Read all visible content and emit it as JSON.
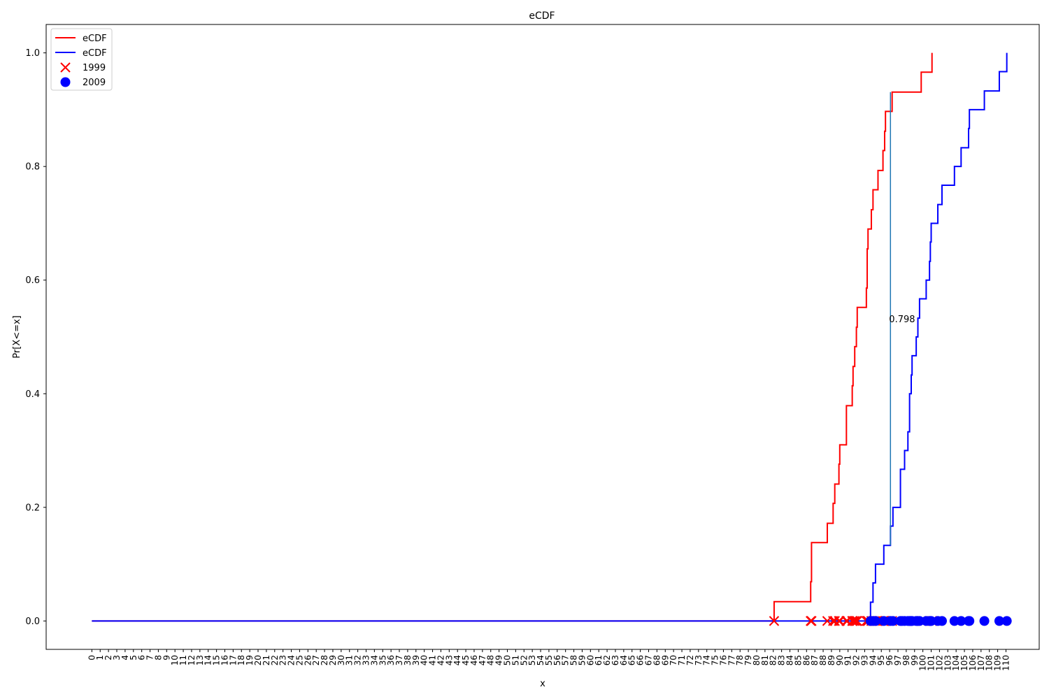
{
  "chart_data": {
    "type": "line",
    "title": "eCDF",
    "xlabel": "x",
    "ylabel": "Pr[X<=x]",
    "xlim": [
      -5.5,
      114
    ],
    "ylim": [
      -0.05,
      1.05
    ],
    "x_ticks": [
      "0",
      "1",
      "2",
      "3",
      "4",
      "5",
      "6",
      "7",
      "8",
      "9",
      "10",
      "11",
      "12",
      "13",
      "14",
      "15",
      "16",
      "17",
      "18",
      "19",
      "20",
      "21",
      "22",
      "23",
      "24",
      "25",
      "26",
      "27",
      "28",
      "29",
      "30",
      "31",
      "32",
      "33",
      "34",
      "35",
      "36",
      "37",
      "38",
      "39",
      "40",
      "41",
      "42",
      "43",
      "44",
      "45",
      "46",
      "47",
      "48",
      "49",
      "50",
      "51",
      "52",
      "53",
      "54",
      "55",
      "56",
      "57",
      "58",
      "59",
      "60",
      "61",
      "62",
      "63",
      "64",
      "65",
      "66",
      "67",
      "68",
      "69",
      "70",
      "71",
      "72",
      "73",
      "74",
      "75",
      "76",
      "77",
      "78",
      "79",
      "80",
      "81",
      "82",
      "83",
      "84",
      "85",
      "86",
      "87",
      "88",
      "89",
      "90",
      "91",
      "92",
      "93",
      "94",
      "95",
      "96",
      "97",
      "98",
      "99",
      "100",
      "101",
      "102",
      "103",
      "104",
      "105",
      "106",
      "107",
      "108",
      "109",
      "110"
    ],
    "y_ticks": [
      "0.0",
      "0.2",
      "0.4",
      "0.6",
      "0.8",
      "1.0"
    ],
    "legend_position": "top-left",
    "grid": false,
    "series": [
      {
        "name": "eCDF",
        "kind": "step",
        "color": "#ff0000",
        "points": [
          [
            0,
            0
          ],
          [
            82.1,
            0
          ],
          [
            82.1,
            0.034
          ],
          [
            86.5,
            0.034
          ],
          [
            86.5,
            0.069
          ],
          [
            86.6,
            0.069
          ],
          [
            86.6,
            0.138
          ],
          [
            88.5,
            0.138
          ],
          [
            88.5,
            0.172
          ],
          [
            89.2,
            0.172
          ],
          [
            89.2,
            0.207
          ],
          [
            89.4,
            0.207
          ],
          [
            89.4,
            0.241
          ],
          [
            89.9,
            0.241
          ],
          [
            89.9,
            0.276
          ],
          [
            90.0,
            0.276
          ],
          [
            90.0,
            0.31
          ],
          [
            90.8,
            0.31
          ],
          [
            90.8,
            0.379
          ],
          [
            91.5,
            0.379
          ],
          [
            91.5,
            0.414
          ],
          [
            91.6,
            0.414
          ],
          [
            91.6,
            0.448
          ],
          [
            91.8,
            0.448
          ],
          [
            91.8,
            0.483
          ],
          [
            92.0,
            0.483
          ],
          [
            92.0,
            0.517
          ],
          [
            92.1,
            0.517
          ],
          [
            92.1,
            0.552
          ],
          [
            93.2,
            0.552
          ],
          [
            93.2,
            0.586
          ],
          [
            93.3,
            0.586
          ],
          [
            93.3,
            0.655
          ],
          [
            93.4,
            0.655
          ],
          [
            93.4,
            0.69
          ],
          [
            93.8,
            0.69
          ],
          [
            93.8,
            0.724
          ],
          [
            94.0,
            0.724
          ],
          [
            94.0,
            0.759
          ],
          [
            94.6,
            0.759
          ],
          [
            94.6,
            0.793
          ],
          [
            95.2,
            0.793
          ],
          [
            95.2,
            0.828
          ],
          [
            95.4,
            0.828
          ],
          [
            95.4,
            0.862
          ],
          [
            95.5,
            0.862
          ],
          [
            95.5,
            0.897
          ],
          [
            96.3,
            0.897
          ],
          [
            96.3,
            0.931
          ],
          [
            99.8,
            0.931
          ],
          [
            99.8,
            0.966
          ],
          [
            101.1,
            0.966
          ],
          [
            101.1,
            1.0
          ]
        ]
      },
      {
        "name": "eCDF",
        "kind": "step",
        "color": "#0000ff",
        "points": [
          [
            0,
            0
          ],
          [
            93.7,
            0
          ],
          [
            93.7,
            0.033
          ],
          [
            94.0,
            0.033
          ],
          [
            94.0,
            0.067
          ],
          [
            94.3,
            0.067
          ],
          [
            94.3,
            0.1
          ],
          [
            95.3,
            0.1
          ],
          [
            95.3,
            0.133
          ],
          [
            96.1,
            0.133
          ],
          [
            96.1,
            0.167
          ],
          [
            96.4,
            0.167
          ],
          [
            96.4,
            0.2
          ],
          [
            97.3,
            0.2
          ],
          [
            97.3,
            0.267
          ],
          [
            97.8,
            0.267
          ],
          [
            97.8,
            0.3
          ],
          [
            98.2,
            0.3
          ],
          [
            98.2,
            0.333
          ],
          [
            98.4,
            0.333
          ],
          [
            98.4,
            0.4
          ],
          [
            98.6,
            0.4
          ],
          [
            98.6,
            0.433
          ],
          [
            98.7,
            0.433
          ],
          [
            98.7,
            0.467
          ],
          [
            99.2,
            0.467
          ],
          [
            99.2,
            0.5
          ],
          [
            99.4,
            0.5
          ],
          [
            99.4,
            0.533
          ],
          [
            99.6,
            0.533
          ],
          [
            99.6,
            0.567
          ],
          [
            100.4,
            0.567
          ],
          [
            100.4,
            0.6
          ],
          [
            100.8,
            0.6
          ],
          [
            100.8,
            0.633
          ],
          [
            100.9,
            0.633
          ],
          [
            100.9,
            0.667
          ],
          [
            101.0,
            0.667
          ],
          [
            101.0,
            0.7
          ],
          [
            101.8,
            0.7
          ],
          [
            101.8,
            0.733
          ],
          [
            102.3,
            0.733
          ],
          [
            102.3,
            0.767
          ],
          [
            103.8,
            0.767
          ],
          [
            103.8,
            0.8
          ],
          [
            104.6,
            0.8
          ],
          [
            104.6,
            0.833
          ],
          [
            105.5,
            0.833
          ],
          [
            105.5,
            0.867
          ],
          [
            105.6,
            0.867
          ],
          [
            105.6,
            0.9
          ],
          [
            107.4,
            0.9
          ],
          [
            107.4,
            0.933
          ],
          [
            109.2,
            0.933
          ],
          [
            109.2,
            0.967
          ],
          [
            110.1,
            0.967
          ],
          [
            110.1,
            1.0
          ]
        ]
      }
    ],
    "scatter_series": [
      {
        "name": "1999",
        "marker": "x",
        "color": "#ff0000",
        "x": [
          82.1,
          86.5,
          86.6,
          88.5,
          89.2,
          89.4,
          89.9,
          90.0,
          90.8,
          90.9,
          91.5,
          91.6,
          91.8,
          92.0,
          92.1,
          93.2,
          93.3,
          93.4,
          93.8,
          94.0,
          94.6,
          95.2,
          95.4,
          95.5,
          96.3,
          99.8,
          101.1
        ],
        "y": [
          0,
          0,
          0,
          0,
          0,
          0,
          0,
          0,
          0,
          0,
          0,
          0,
          0,
          0,
          0,
          0,
          0,
          0,
          0,
          0,
          0,
          0,
          0,
          0,
          0,
          0,
          0
        ]
      },
      {
        "name": "2009",
        "marker": "circle",
        "color": "#0000ff",
        "x": [
          93.7,
          94.0,
          94.3,
          95.3,
          96.1,
          96.4,
          97.3,
          97.5,
          97.8,
          98.2,
          98.4,
          98.5,
          98.6,
          98.7,
          99.2,
          99.4,
          99.6,
          100.4,
          100.8,
          100.9,
          101.0,
          101.8,
          102.3,
          103.8,
          104.6,
          105.5,
          105.6,
          107.4,
          109.2,
          110.1
        ],
        "y": [
          0,
          0,
          0,
          0,
          0,
          0,
          0,
          0,
          0,
          0,
          0,
          0,
          0,
          0,
          0,
          0,
          0,
          0,
          0,
          0,
          0,
          0,
          0,
          0,
          0,
          0,
          0,
          0,
          0,
          0
        ]
      }
    ],
    "annotation": {
      "text": "0.798",
      "line_x": 96.1,
      "line_y": [
        0.133,
        0.931
      ],
      "label_x": 96.1,
      "label_y": 0.532,
      "color": "#1f77b4"
    }
  }
}
